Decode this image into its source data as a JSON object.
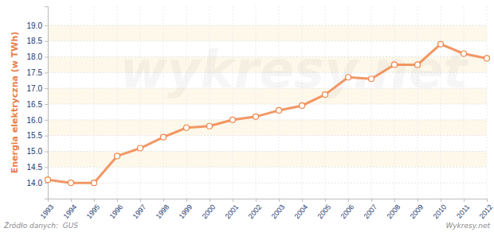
{
  "chart_data": {
    "type": "line",
    "y_label": "Energia elektryczna (w TWh)",
    "x": [
      1993,
      1994,
      1995,
      1996,
      1997,
      1998,
      1999,
      2000,
      2001,
      2002,
      2003,
      2004,
      2005,
      2006,
      2007,
      2008,
      2009,
      2010,
      2011,
      2012
    ],
    "values": [
      14.1,
      14.0,
      14.0,
      14.85,
      15.1,
      15.45,
      15.75,
      15.8,
      16.0,
      16.1,
      16.3,
      16.45,
      16.8,
      17.35,
      17.3,
      17.75,
      17.75,
      18.4,
      18.1,
      17.95
    ],
    "color": "#f0854a",
    "marker": "circle",
    "xlim": [
      1993,
      2012
    ],
    "xticks": [
      1993,
      1994,
      1995,
      1996,
      1997,
      1998,
      1999,
      2000,
      2001,
      2002,
      2003,
      2004,
      2005,
      2006,
      2007,
      2008,
      2009,
      2010,
      2011,
      2012
    ],
    "ylim": [
      13.5,
      19.6
    ],
    "yticks": [
      {
        "value": 14,
        "label": "14.0"
      },
      14.5,
      {
        "value": 15,
        "label": "15.0"
      },
      15.5,
      {
        "value": 16,
        "label": "16.0"
      },
      16.5,
      {
        "value": 17,
        "label": "17.0"
      },
      17.5,
      {
        "value": 18,
        "label": "18.0"
      },
      18.5,
      {
        "value": 19,
        "label": "19.0"
      }
    ],
    "grid": true,
    "annotations": [
      "Źródło danych:  GUS",
      "Wykresy.net",
      "wykresy.net"
    ]
  }
}
